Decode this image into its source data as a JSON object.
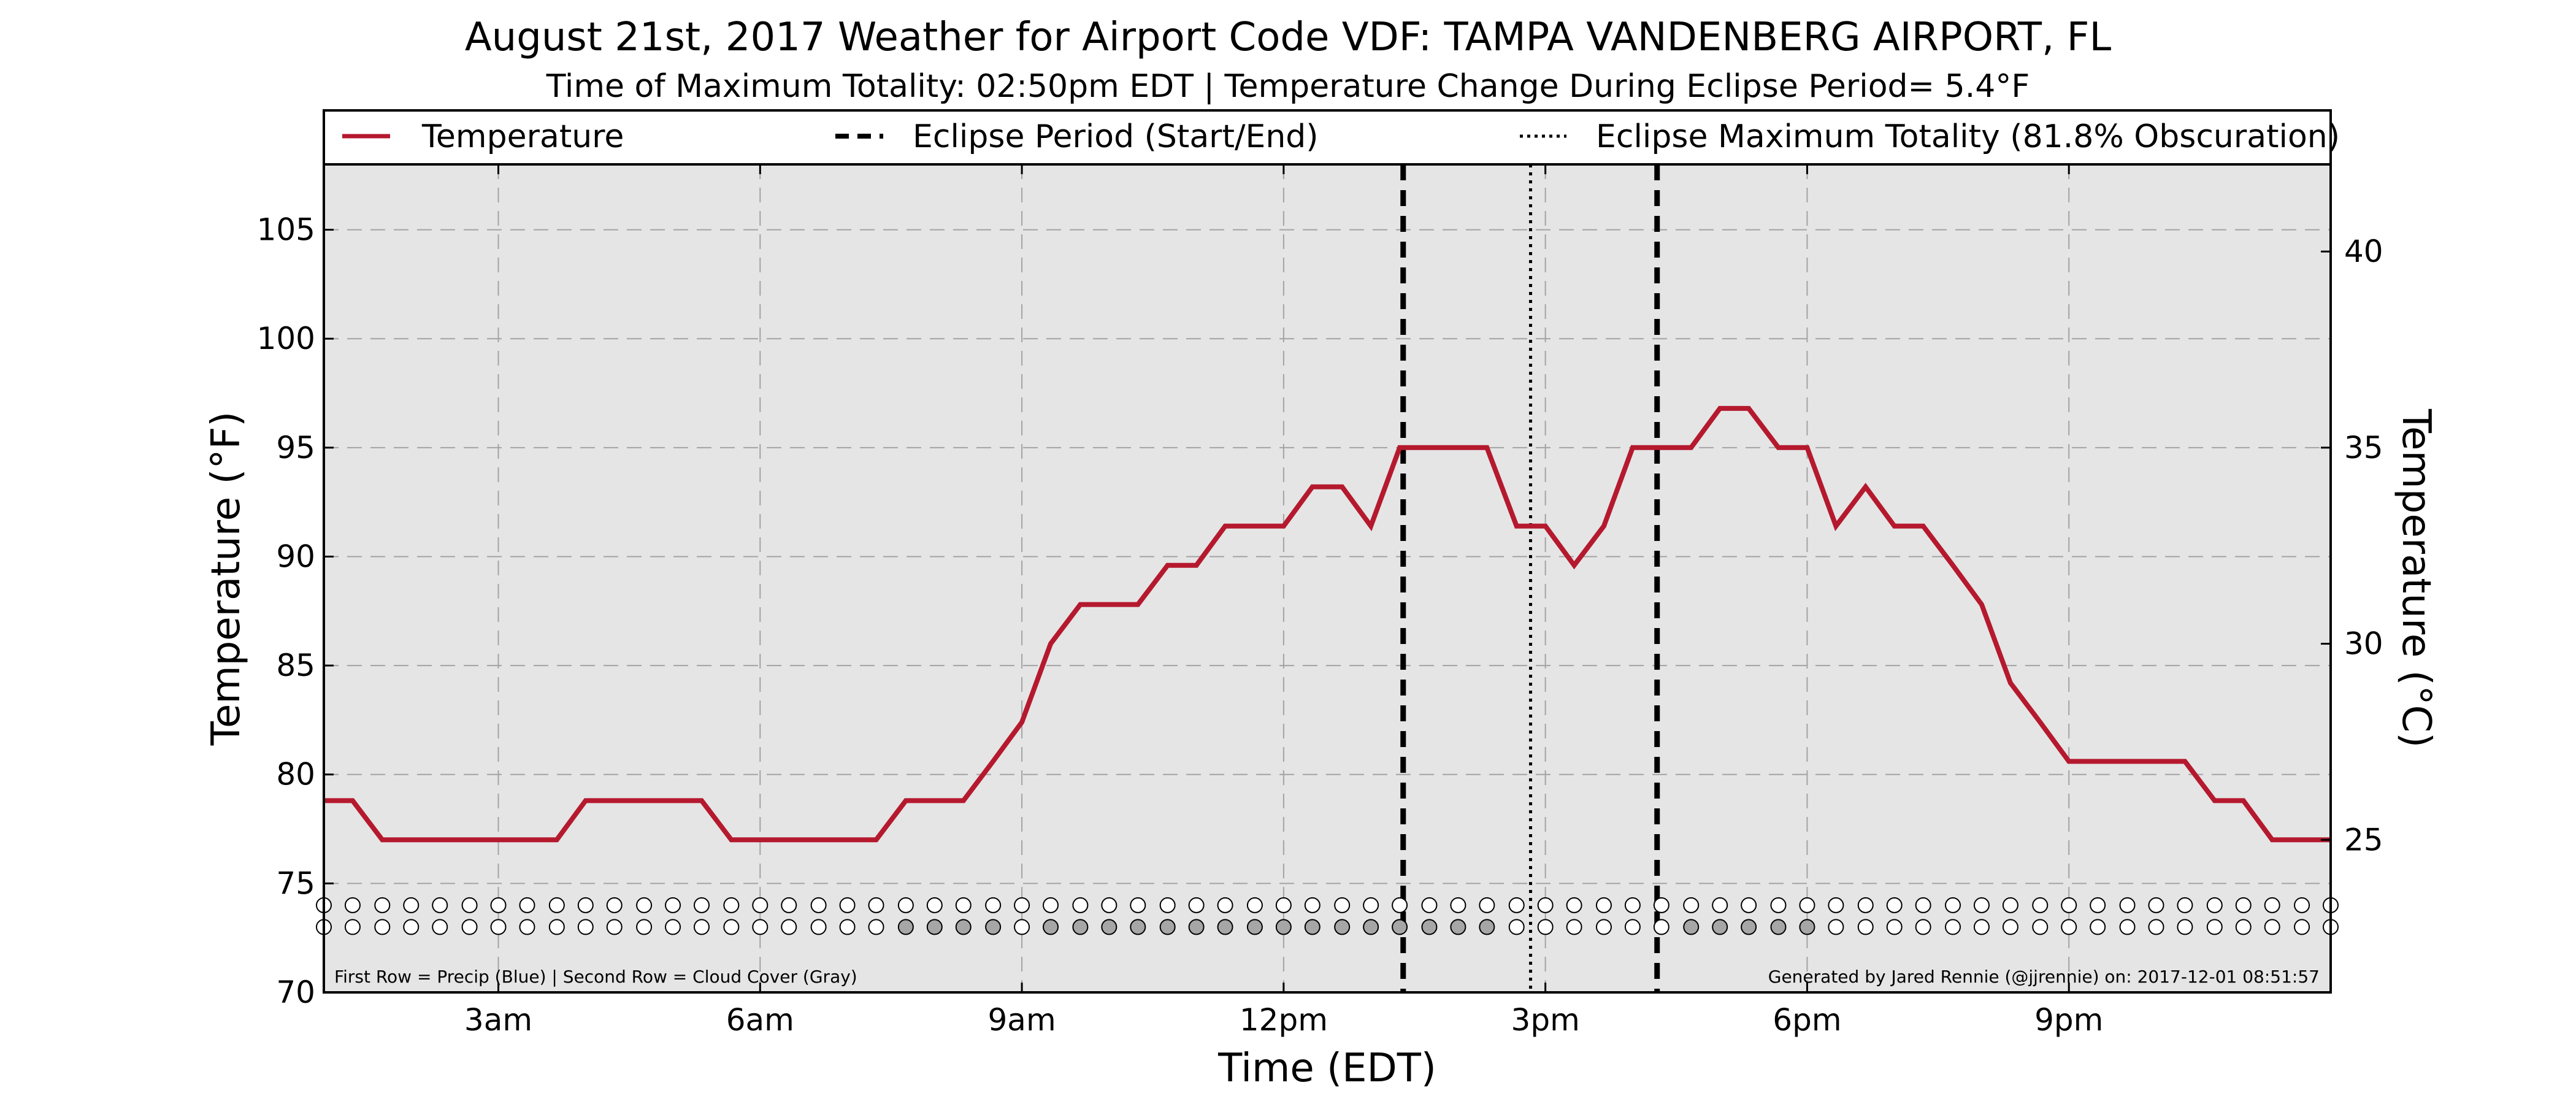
{
  "chart_data": {
    "type": "line",
    "title": "August 21st, 2017 Weather for Airport Code VDF: TAMPA VANDENBERG AIRPORT, FL",
    "subtitle": "Time of Maximum Totality: 02:50pm EDT | Temperature Change During Eclipse Period= 5.4°F",
    "xlabel": "Time (EDT)",
    "ylabel_left": "Temperature (°F)",
    "ylabel_right": "Temperature (°C)",
    "x_unit": "hours since midnight EDT",
    "xlim": [
      1,
      24
    ],
    "ylim": [
      70,
      108
    ],
    "x_ticks": [
      {
        "x": 3,
        "label": "3am"
      },
      {
        "x": 6,
        "label": "6am"
      },
      {
        "x": 9,
        "label": "9am"
      },
      {
        "x": 12,
        "label": "12pm"
      },
      {
        "x": 15,
        "label": "3pm"
      },
      {
        "x": 18,
        "label": "6pm"
      },
      {
        "x": 21,
        "label": "9pm"
      }
    ],
    "y_ticks_left": [
      70,
      75,
      80,
      85,
      90,
      95,
      100,
      105
    ],
    "y_ticks_right": [
      25,
      30,
      35,
      40
    ],
    "grid": true,
    "legend": {
      "placement": "top",
      "entries": [
        {
          "label": "Temperature",
          "style": "solid",
          "color": "#b5192e"
        },
        {
          "label": "Eclipse Period (Start/End)",
          "style": "dashed",
          "color": "#000000"
        },
        {
          "label": "Eclipse Maximum Totality (81.8% Obscuration)",
          "style": "dotted",
          "color": "#000000"
        }
      ]
    },
    "series": [
      {
        "name": "Temperature",
        "color": "#b5192e",
        "x": [
          1.0,
          1.33,
          1.67,
          2.0,
          2.33,
          2.67,
          3.0,
          3.33,
          3.67,
          4.0,
          4.33,
          4.67,
          5.0,
          5.33,
          5.67,
          6.0,
          6.33,
          6.67,
          7.0,
          7.33,
          7.67,
          8.0,
          8.33,
          8.67,
          9.0,
          9.33,
          9.67,
          10.0,
          10.33,
          10.67,
          11.0,
          11.33,
          11.67,
          12.0,
          12.33,
          12.67,
          13.0,
          13.33,
          13.67,
          14.0,
          14.33,
          14.67,
          15.0,
          15.33,
          15.67,
          16.0,
          16.33,
          16.67,
          17.0,
          17.33,
          17.67,
          18.0,
          18.33,
          18.67,
          19.0,
          19.33,
          19.67,
          20.0,
          20.33,
          20.67,
          21.0,
          21.33,
          21.67,
          22.0,
          22.33,
          22.67,
          23.0,
          23.33,
          23.67,
          24.0
        ],
        "values": [
          78.8,
          78.8,
          77.0,
          77.0,
          77.0,
          77.0,
          77.0,
          77.0,
          77.0,
          78.8,
          78.8,
          78.8,
          78.8,
          78.8,
          77.0,
          77.0,
          77.0,
          77.0,
          77.0,
          77.0,
          78.8,
          78.8,
          78.8,
          80.6,
          82.4,
          86.0,
          87.8,
          87.8,
          87.8,
          89.6,
          89.6,
          91.4,
          91.4,
          91.4,
          93.2,
          93.2,
          91.4,
          95.0,
          95.0,
          95.0,
          95.0,
          91.4,
          91.4,
          89.6,
          91.4,
          95.0,
          95.0,
          95.0,
          96.8,
          96.8,
          95.0,
          95.0,
          91.4,
          93.2,
          91.4,
          91.4,
          89.6,
          87.8,
          84.2,
          82.4,
          80.6,
          80.6,
          80.6,
          80.6,
          80.6,
          78.8,
          78.8,
          77.0,
          77.0,
          77.0
        ]
      }
    ],
    "eclipse_start": 13.37,
    "eclipse_max": 14.83,
    "eclipse_end": 16.28,
    "markers": {
      "row1_label": "First Row = Precip (Blue)",
      "row2_label": "Second Row = Cloud Cover (Gray)",
      "row1_y": 74,
      "row2_y": 73,
      "row1_fill": [
        0,
        0,
        0,
        0,
        0,
        0,
        0,
        0,
        0,
        0,
        0,
        0,
        0,
        0,
        0,
        0,
        0,
        0,
        0,
        0,
        0,
        0,
        0,
        0,
        0,
        0,
        0,
        0,
        0,
        0,
        0,
        0,
        0,
        0,
        0,
        0,
        0,
        0,
        0,
        0,
        0,
        0,
        0,
        0,
        0,
        0,
        0,
        0,
        0,
        0,
        0,
        0,
        0,
        0,
        0,
        0,
        0,
        0,
        0,
        0,
        0,
        0,
        0,
        0,
        0,
        0,
        0,
        0,
        0,
        0
      ],
      "row2_fill": [
        0,
        0,
        0,
        0,
        0,
        0,
        0,
        0,
        0,
        0,
        0,
        0,
        0,
        0,
        0,
        0,
        0,
        0,
        0,
        0,
        1,
        1,
        1,
        1,
        0,
        1,
        1,
        1,
        1,
        1,
        1,
        1,
        1,
        1,
        1,
        1,
        1,
        1,
        1,
        1,
        1,
        0,
        0,
        0,
        0,
        0,
        0,
        1,
        1,
        1,
        1,
        1,
        0,
        0,
        0,
        0,
        0,
        0,
        0,
        0,
        0,
        0,
        0,
        0,
        0,
        0,
        0,
        0,
        0,
        0
      ]
    },
    "footnote_left": "First Row = Precip (Blue) | Second Row = Cloud Cover (Gray)",
    "footnote_right": "Generated by Jared Rennie (@jjrennie) on: 2017-12-01 08:51:57",
    "colors": {
      "plot_background": "#e5e5e5",
      "temperature_line": "#b5192e",
      "cloud_marker": "#a6a6a6",
      "empty_marker": "#ffffff"
    }
  }
}
